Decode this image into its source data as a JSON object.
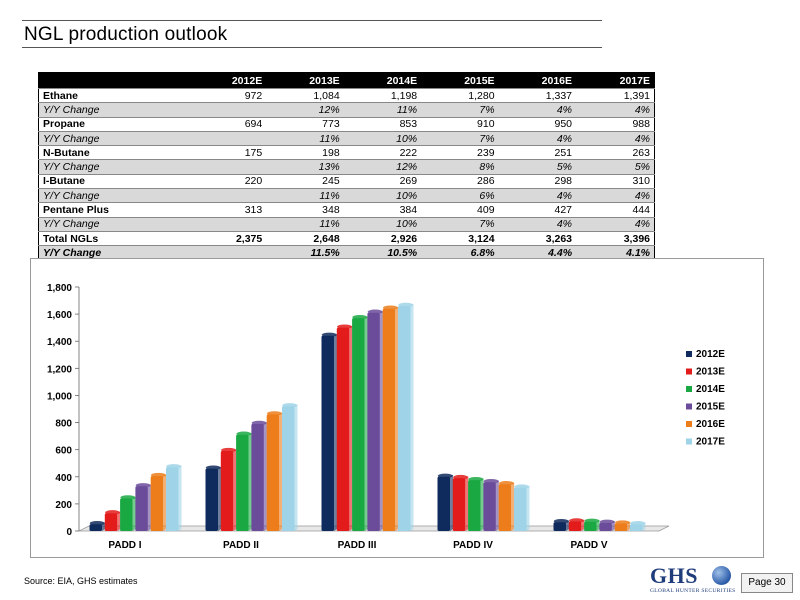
{
  "header": {
    "title": "NGL production outlook"
  },
  "table": {
    "columns": [
      "",
      "2012E",
      "2013E",
      "2014E",
      "2015E",
      "2016E",
      "2017E"
    ],
    "rows": [
      {
        "kind": "main",
        "cells": [
          "Ethane",
          "972",
          "1,084",
          "1,198",
          "1,280",
          "1,337",
          "1,391"
        ]
      },
      {
        "kind": "chg",
        "cells": [
          "Y/Y Change",
          "",
          "12%",
          "11%",
          "7%",
          "4%",
          "4%"
        ]
      },
      {
        "kind": "main",
        "cells": [
          "Propane",
          "694",
          "773",
          "853",
          "910",
          "950",
          "988"
        ]
      },
      {
        "kind": "chg",
        "cells": [
          "Y/Y Change",
          "",
          "11%",
          "10%",
          "7%",
          "4%",
          "4%"
        ]
      },
      {
        "kind": "main",
        "cells": [
          "N-Butane",
          "175",
          "198",
          "222",
          "239",
          "251",
          "263"
        ]
      },
      {
        "kind": "chg",
        "cells": [
          "Y/Y Change",
          "",
          "13%",
          "12%",
          "8%",
          "5%",
          "5%"
        ]
      },
      {
        "kind": "main",
        "cells": [
          "I-Butane",
          "220",
          "245",
          "269",
          "286",
          "298",
          "310"
        ]
      },
      {
        "kind": "chg",
        "cells": [
          "Y/Y Change",
          "",
          "11%",
          "10%",
          "6%",
          "4%",
          "4%"
        ]
      },
      {
        "kind": "main",
        "cells": [
          "Pentane Plus",
          "313",
          "348",
          "384",
          "409",
          "427",
          "444"
        ]
      },
      {
        "kind": "chg",
        "cells": [
          "Y/Y Change",
          "",
          "11%",
          "10%",
          "7%",
          "4%",
          "4%"
        ]
      },
      {
        "kind": "total",
        "cells": [
          "Total NGLs",
          "2,375",
          "2,648",
          "2,926",
          "3,124",
          "3,263",
          "3,396"
        ]
      },
      {
        "kind": "totchg",
        "cells": [
          "Y/Y Change",
          "",
          "11.5%",
          "10.5%",
          "6.8%",
          "4.4%",
          "4.1%"
        ]
      }
    ]
  },
  "chart_data": {
    "type": "bar",
    "title": "",
    "xlabel": "",
    "ylabel": "",
    "categories": [
      "PADD I",
      "PADD II",
      "PADD III",
      "PADD IV",
      "PADD V"
    ],
    "ylim": [
      0,
      1800
    ],
    "yticks": [
      "0",
      "200",
      "400",
      "600",
      "800",
      "1,000",
      "1,200",
      "1,400",
      "1,600",
      "1,800"
    ],
    "ytick_values": [
      0,
      200,
      400,
      600,
      800,
      1000,
      1200,
      1400,
      1600,
      1800
    ],
    "legend_position": "right",
    "series": [
      {
        "name": "2012E",
        "color": "#0f2a5c",
        "values": [
          50,
          460,
          1440,
          400,
          65
        ]
      },
      {
        "name": "2013E",
        "color": "#e31b1b",
        "values": [
          130,
          590,
          1500,
          390,
          70
        ]
      },
      {
        "name": "2014E",
        "color": "#1aa843",
        "values": [
          240,
          710,
          1570,
          375,
          68
        ]
      },
      {
        "name": "2015E",
        "color": "#6b4c9a",
        "values": [
          330,
          790,
          1610,
          360,
          60
        ]
      },
      {
        "name": "2016E",
        "color": "#ec7d1a",
        "values": [
          405,
          860,
          1640,
          345,
          55
        ]
      },
      {
        "name": "2017E",
        "color": "#9fd3e8",
        "values": [
          470,
          920,
          1660,
          320,
          50
        ]
      }
    ]
  },
  "footer": {
    "source": "Source: EIA, GHS estimates",
    "logo_text": "GHS",
    "logo_subtext": "GLOBAL HUNTER SECURITIES",
    "page_label": "Page 30"
  }
}
